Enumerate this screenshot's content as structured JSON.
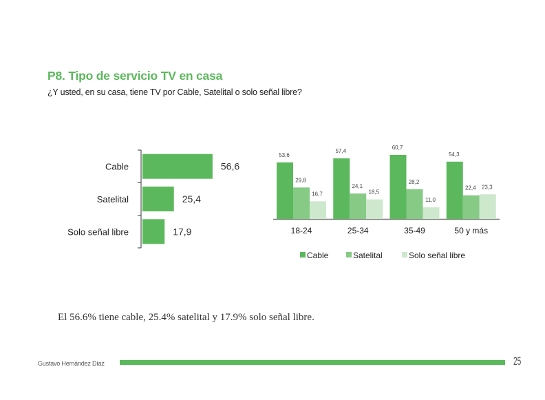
{
  "header": {
    "title": "P8. Tipo de servicio TV en casa",
    "subtitle": "¿Y usted, en su casa, tiene TV por Cable, Satelital o solo señal libre?"
  },
  "chart_data": [
    {
      "type": "bar",
      "orientation": "horizontal",
      "title": "",
      "categories": [
        "Cable",
        "Satelital",
        "Solo señal libre"
      ],
      "values": [
        56.6,
        25.4,
        17.9
      ],
      "value_labels": [
        "56,6",
        "25,4",
        "17,9"
      ],
      "xlim": [
        0,
        100
      ],
      "grid": false,
      "color": "#5cb85c"
    },
    {
      "type": "bar",
      "orientation": "vertical",
      "title": "",
      "categories": [
        "18-24",
        "25-34",
        "35-49",
        "50 y más"
      ],
      "series": [
        {
          "name": "Cable",
          "values": [
            53.6,
            57.4,
            60.7,
            54.3
          ],
          "labels": [
            "53,6",
            "57,4",
            "60,7",
            "54,3"
          ],
          "color": "#5cb85c"
        },
        {
          "name": "Satelital",
          "values": [
            29.8,
            24.1,
            28.2,
            22.4
          ],
          "labels": [
            "29,8",
            "24,1",
            "28,2",
            "22,4"
          ],
          "color": "#86ca86"
        },
        {
          "name": "Solo señal libre",
          "values": [
            16.7,
            18.5,
            11.0,
            23.3
          ],
          "labels": [
            "16,7",
            "18,5",
            "11,0",
            "23,3"
          ],
          "color": "#cde8cd"
        }
      ],
      "ylim": [
        0,
        70
      ],
      "grid": false,
      "legend": "bottom"
    }
  ],
  "caption": "El 56.6% tiene cable, 25.4% satelital y 17.9% solo señal libre.",
  "footer": {
    "author": "Gustavo Hernández Díaz",
    "page_number": "25",
    "bar_color": "#5cb85c"
  }
}
